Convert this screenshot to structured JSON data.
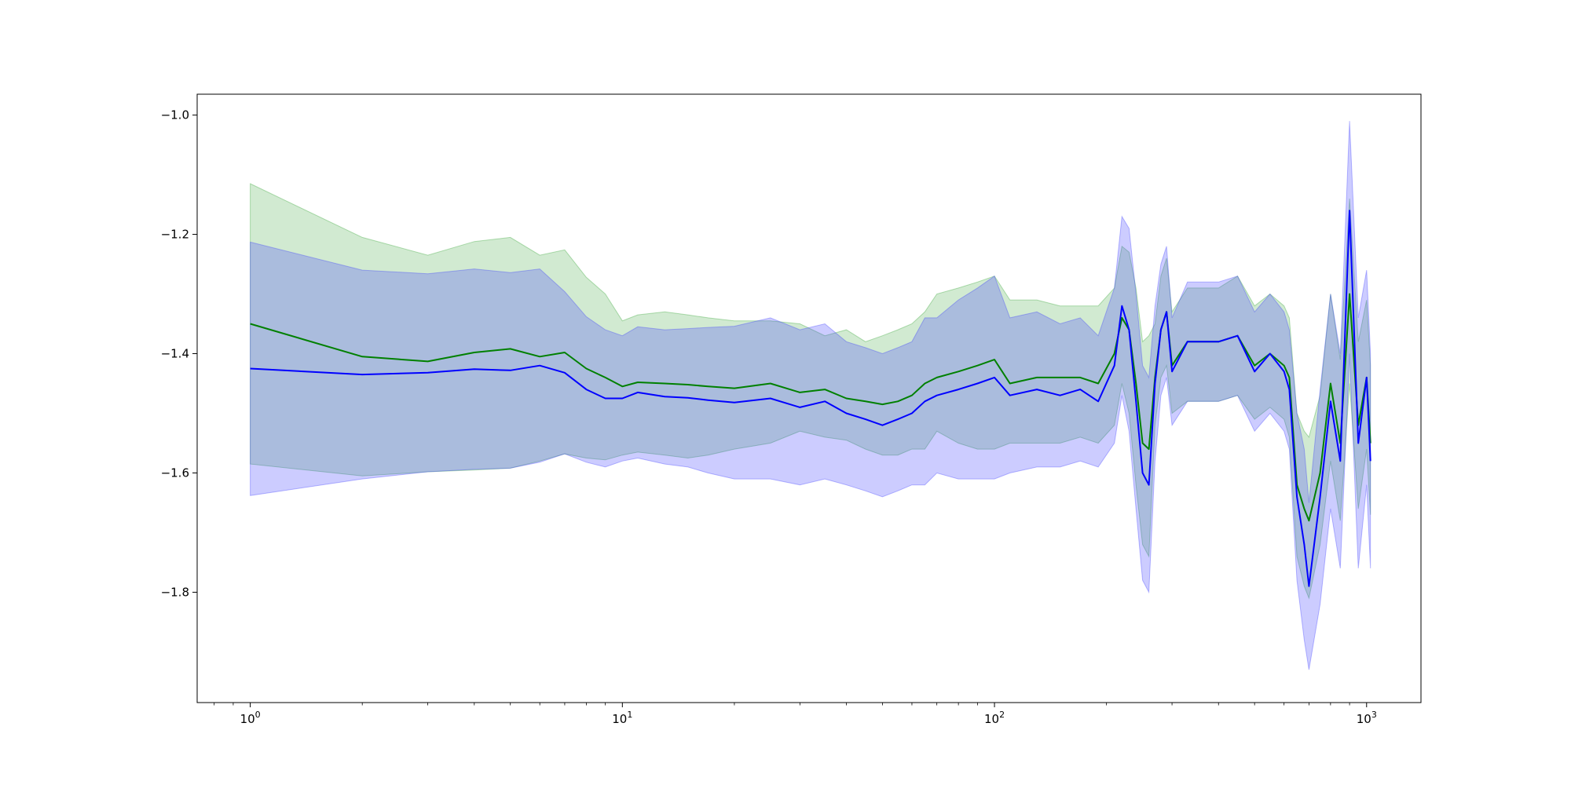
{
  "chart_data": {
    "type": "line",
    "title": "",
    "xlabel": "",
    "ylabel": "",
    "xscale": "log",
    "xlim": [
      0.72,
      1400
    ],
    "ylim": [
      -1.985,
      -0.965
    ],
    "grid": false,
    "x_ticks": [
      {
        "value": 1,
        "base": "10",
        "exp": "0"
      },
      {
        "value": 10,
        "base": "10",
        "exp": "1"
      },
      {
        "value": 100,
        "base": "10",
        "exp": "2"
      },
      {
        "value": 1000,
        "base": "10",
        "exp": "3"
      }
    ],
    "y_ticks": [
      {
        "value": -1.0,
        "label": "−1.0"
      },
      {
        "value": -1.2,
        "label": "−1.2"
      },
      {
        "value": -1.4,
        "label": "−1.4"
      },
      {
        "value": -1.6,
        "label": "−1.6"
      },
      {
        "value": -1.8,
        "label": "−1.8"
      }
    ],
    "series": [
      {
        "color": "#008000",
        "band_color": "#2ca02c",
        "band_opacity": 0.22,
        "x": [
          1,
          2,
          3,
          4,
          5,
          6,
          7,
          8,
          9,
          10,
          11,
          13,
          15,
          17,
          20,
          25,
          30,
          35,
          40,
          45,
          50,
          55,
          60,
          65,
          70,
          80,
          90,
          100,
          110,
          130,
          150,
          170,
          190,
          210,
          220,
          230,
          240,
          250,
          260,
          270,
          280,
          290,
          300,
          330,
          360,
          400,
          450,
          500,
          550,
          600,
          620,
          650,
          680,
          700,
          750,
          800,
          850,
          900,
          950,
          1000,
          1024
        ],
        "y": [
          -1.35,
          -1.405,
          -1.413,
          -1.398,
          -1.392,
          -1.405,
          -1.398,
          -1.425,
          -1.44,
          -1.455,
          -1.448,
          -1.45,
          -1.452,
          -1.455,
          -1.458,
          -1.45,
          -1.465,
          -1.46,
          -1.475,
          -1.48,
          -1.485,
          -1.48,
          -1.47,
          -1.45,
          -1.44,
          -1.43,
          -1.42,
          -1.41,
          -1.45,
          -1.44,
          -1.44,
          -1.44,
          -1.45,
          -1.4,
          -1.34,
          -1.36,
          -1.45,
          -1.55,
          -1.56,
          -1.44,
          -1.36,
          -1.33,
          -1.42,
          -1.38,
          -1.38,
          -1.38,
          -1.37,
          -1.42,
          -1.4,
          -1.42,
          -1.44,
          -1.62,
          -1.66,
          -1.68,
          -1.6,
          -1.45,
          -1.55,
          -1.3,
          -1.52,
          -1.44,
          -1.55
        ],
        "lower": [
          -1.585,
          -1.605,
          -1.598,
          -1.595,
          -1.592,
          -1.58,
          -1.568,
          -1.575,
          -1.578,
          -1.57,
          -1.565,
          -1.57,
          -1.575,
          -1.57,
          -1.56,
          -1.55,
          -1.53,
          -1.54,
          -1.545,
          -1.56,
          -1.57,
          -1.57,
          -1.56,
          -1.56,
          -1.53,
          -1.55,
          -1.56,
          -1.56,
          -1.55,
          -1.55,
          -1.55,
          -1.54,
          -1.55,
          -1.52,
          -1.45,
          -1.5,
          -1.62,
          -1.72,
          -1.74,
          -1.52,
          -1.44,
          -1.42,
          -1.5,
          -1.48,
          -1.48,
          -1.48,
          -1.47,
          -1.51,
          -1.49,
          -1.51,
          -1.54,
          -1.74,
          -1.79,
          -1.81,
          -1.72,
          -1.58,
          -1.68,
          -1.45,
          -1.66,
          -1.56,
          -1.67
        ],
        "upper": [
          -1.115,
          -1.205,
          -1.235,
          -1.212,
          -1.205,
          -1.235,
          -1.226,
          -1.272,
          -1.3,
          -1.345,
          -1.335,
          -1.33,
          -1.335,
          -1.34,
          -1.345,
          -1.345,
          -1.35,
          -1.37,
          -1.36,
          -1.38,
          -1.37,
          -1.36,
          -1.35,
          -1.33,
          -1.3,
          -1.29,
          -1.28,
          -1.27,
          -1.31,
          -1.31,
          -1.32,
          -1.32,
          -1.32,
          -1.29,
          -1.22,
          -1.23,
          -1.29,
          -1.38,
          -1.37,
          -1.35,
          -1.27,
          -1.24,
          -1.33,
          -1.29,
          -1.29,
          -1.29,
          -1.27,
          -1.32,
          -1.3,
          -1.32,
          -1.34,
          -1.5,
          -1.53,
          -1.54,
          -1.47,
          -1.3,
          -1.41,
          -1.14,
          -1.38,
          -1.31,
          -1.42
        ]
      },
      {
        "color": "#0000ff",
        "band_color": "#3a3aff",
        "band_opacity": 0.26,
        "x": [
          1,
          2,
          3,
          4,
          5,
          6,
          7,
          8,
          9,
          10,
          11,
          13,
          15,
          17,
          20,
          25,
          30,
          35,
          40,
          45,
          50,
          55,
          60,
          65,
          70,
          80,
          90,
          100,
          110,
          130,
          150,
          170,
          190,
          210,
          220,
          230,
          240,
          250,
          260,
          270,
          280,
          290,
          300,
          330,
          360,
          400,
          450,
          500,
          550,
          600,
          620,
          650,
          680,
          700,
          750,
          800,
          850,
          900,
          950,
          1000,
          1024
        ],
        "y": [
          -1.425,
          -1.435,
          -1.432,
          -1.426,
          -1.428,
          -1.42,
          -1.432,
          -1.46,
          -1.475,
          -1.475,
          -1.465,
          -1.472,
          -1.474,
          -1.478,
          -1.482,
          -1.475,
          -1.49,
          -1.48,
          -1.5,
          -1.51,
          -1.52,
          -1.51,
          -1.5,
          -1.48,
          -1.47,
          -1.46,
          -1.45,
          -1.44,
          -1.47,
          -1.46,
          -1.47,
          -1.46,
          -1.48,
          -1.42,
          -1.32,
          -1.36,
          -1.48,
          -1.6,
          -1.62,
          -1.45,
          -1.36,
          -1.33,
          -1.43,
          -1.38,
          -1.38,
          -1.38,
          -1.37,
          -1.43,
          -1.4,
          -1.43,
          -1.46,
          -1.64,
          -1.72,
          -1.79,
          -1.64,
          -1.48,
          -1.58,
          -1.16,
          -1.55,
          -1.44,
          -1.58
        ],
        "lower": [
          -1.638,
          -1.61,
          -1.598,
          -1.594,
          -1.592,
          -1.582,
          -1.568,
          -1.582,
          -1.59,
          -1.58,
          -1.575,
          -1.585,
          -1.59,
          -1.6,
          -1.61,
          -1.61,
          -1.62,
          -1.61,
          -1.62,
          -1.63,
          -1.64,
          -1.63,
          -1.62,
          -1.62,
          -1.6,
          -1.61,
          -1.61,
          -1.61,
          -1.6,
          -1.59,
          -1.59,
          -1.58,
          -1.59,
          -1.55,
          -1.47,
          -1.53,
          -1.66,
          -1.78,
          -1.8,
          -1.58,
          -1.47,
          -1.44,
          -1.52,
          -1.48,
          -1.48,
          -1.48,
          -1.47,
          -1.53,
          -1.5,
          -1.53,
          -1.56,
          -1.78,
          -1.88,
          -1.93,
          -1.82,
          -1.66,
          -1.76,
          -1.4,
          -1.76,
          -1.62,
          -1.76
        ],
        "upper": [
          -1.213,
          -1.26,
          -1.266,
          -1.258,
          -1.264,
          -1.258,
          -1.296,
          -1.338,
          -1.36,
          -1.37,
          -1.355,
          -1.36,
          -1.358,
          -1.356,
          -1.354,
          -1.34,
          -1.36,
          -1.35,
          -1.38,
          -1.39,
          -1.4,
          -1.39,
          -1.38,
          -1.34,
          -1.34,
          -1.31,
          -1.29,
          -1.27,
          -1.34,
          -1.33,
          -1.35,
          -1.34,
          -1.37,
          -1.29,
          -1.17,
          -1.19,
          -1.3,
          -1.42,
          -1.44,
          -1.32,
          -1.25,
          -1.22,
          -1.34,
          -1.28,
          -1.28,
          -1.28,
          -1.27,
          -1.33,
          -1.3,
          -1.33,
          -1.36,
          -1.5,
          -1.56,
          -1.65,
          -1.46,
          -1.3,
          -1.4,
          -1.01,
          -1.34,
          -1.26,
          -1.4
        ]
      }
    ]
  }
}
